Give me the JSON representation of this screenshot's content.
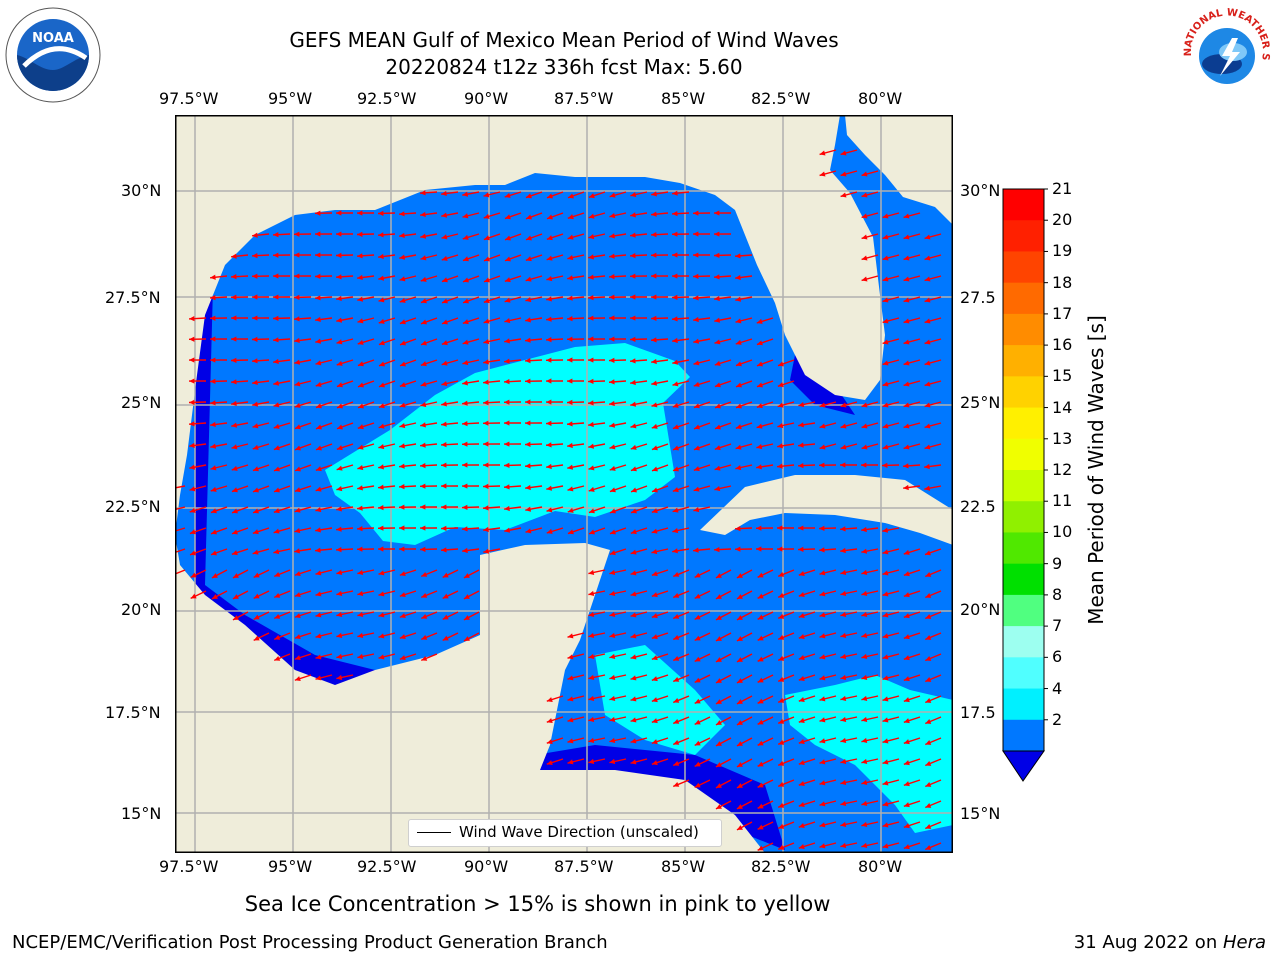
{
  "title": {
    "line1": "GEFS MEAN Gulf of Mexico Mean Period of Wind Waves",
    "line2": "20220824 t12z 336h fcst   Max: 5.60"
  },
  "map": {
    "lon_ticks": [
      "97.5°W",
      "95°W",
      "92.5°W",
      "90°W",
      "87.5°W",
      "85°W",
      "82.5°W",
      "80°W"
    ],
    "lat_ticks_left": [
      "30°N",
      "27.5°N",
      "25°N",
      "22.5°N",
      "20°N",
      "17.5°N",
      "15°N"
    ],
    "lat_ticks_right": [
      "30°N",
      "27.5",
      "25°N",
      "22.5",
      "20°N",
      "17.5",
      "15°N"
    ],
    "legend_label": "Wind Wave Direction (unscaled)",
    "colors": {
      "land": "#efedda",
      "water_low": "#0000e6",
      "water_mid": "#0078ff",
      "water_high": "#00ffff",
      "grid": "#b0b0b0",
      "arrow": "#ff0000"
    }
  },
  "colorbar": {
    "label": "Mean Period of Wind Waves [s]",
    "ticks": [
      "21",
      "20",
      "19",
      "18",
      "17",
      "16",
      "15",
      "14",
      "13",
      "12",
      "11",
      "10",
      "9",
      "8",
      "7",
      "6",
      "4",
      "2"
    ],
    "colors": [
      "#ff0000",
      "#ff2000",
      "#ff4400",
      "#ff6a00",
      "#ff8c00",
      "#ffb000",
      "#ffd200",
      "#fff000",
      "#f0ff00",
      "#c8ff00",
      "#90f000",
      "#50e800",
      "#00e000",
      "#50ff80",
      "#9dfff0",
      "#50ffff",
      "#00f0ff",
      "#0078ff"
    ],
    "extend_color": "#0000e6"
  },
  "footer": {
    "note": "Sea Ice Concentration > 15% is shown in pink to yellow",
    "org": "NCEP/EMC/Verification Post Processing Product Generation Branch",
    "date": "31 Aug 2022 on ",
    "machine": "Hera"
  },
  "logos": {
    "noaa_text": "NOAA",
    "nws_text": "NATIONAL WEATHER SERVICE"
  }
}
